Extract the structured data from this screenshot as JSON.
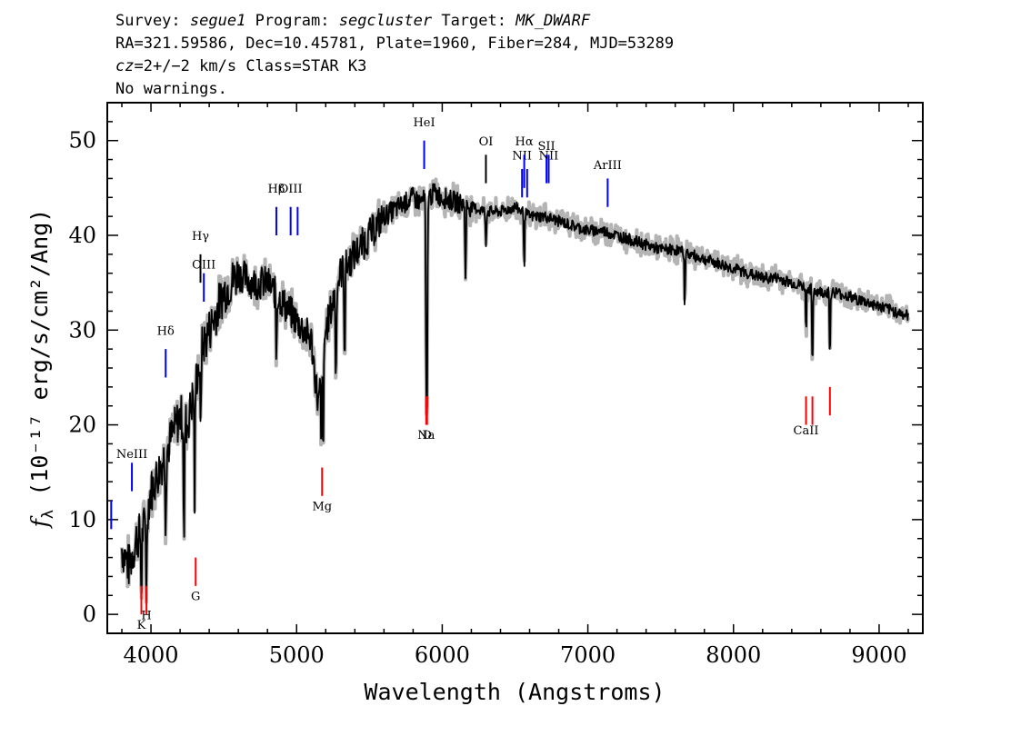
{
  "header": {
    "survey_label": "Survey:",
    "survey": "segue1",
    "program_label": "Program:",
    "program": "segcluster",
    "target_label": "Target:",
    "target": "MK_DWARF",
    "line2": "RA=321.59586, Dec=10.45781, Plate=1960, Fiber=284, MJD=53289",
    "redshift_var": "cz",
    "redshift_value": "=2+/−2",
    "redshift_unit_class": " km/s Class=STAR K3",
    "line4": "No warnings."
  },
  "chart_data": {
    "type": "line",
    "xlabel": "Wavelength (Angstroms)",
    "ylabel_symbol": "f",
    "ylabel_subscript": "λ",
    "ylabel_rest": "(10⁻¹⁷ erg/s/cm²/Ang)",
    "xlim": [
      3700,
      9300
    ],
    "ylim": [
      -2,
      54
    ],
    "x_ticks": [
      4000,
      5000,
      6000,
      7000,
      8000,
      9000
    ],
    "y_ticks": [
      0,
      10,
      20,
      30,
      40,
      50
    ],
    "x_tick_labels": [
      "4000",
      "5000",
      "6000",
      "7000",
      "8000",
      "9000"
    ],
    "y_tick_labels": [
      "0",
      "10",
      "20",
      "30",
      "40",
      "50"
    ],
    "grid": false,
    "spectrum_color": "#000000",
    "error_color": "#b4b4b4",
    "spectrum": {
      "x": [
        3800,
        3850,
        3900,
        3950,
        4000,
        4050,
        4100,
        4150,
        4200,
        4250,
        4300,
        4350,
        4400,
        4450,
        4500,
        4550,
        4600,
        4700,
        4800,
        4900,
        5000,
        5100,
        5150,
        5200,
        5250,
        5300,
        5400,
        5500,
        5600,
        5700,
        5800,
        5850,
        5900,
        5950,
        6000,
        6100,
        6200,
        6300,
        6400,
        6500,
        6600,
        6700,
        6800,
        6900,
        7000,
        7100,
        7200,
        7300,
        7400,
        7500,
        7600,
        7700,
        7800,
        7900,
        8000,
        8100,
        8200,
        8300,
        8400,
        8500,
        8600,
        8700,
        8800,
        8900,
        9000,
        9100,
        9200
      ],
      "y": [
        7,
        5,
        8,
        9,
        13,
        15,
        17,
        19,
        21,
        20,
        24,
        28,
        30,
        32,
        34,
        35,
        36,
        35,
        35,
        33,
        31,
        29,
        22,
        30,
        33,
        36,
        38,
        40,
        42,
        43,
        44,
        43.5,
        44,
        44.5,
        44,
        43.5,
        43,
        42.5,
        42.5,
        43,
        42,
        42,
        41.5,
        41,
        40.5,
        40.5,
        40,
        39.5,
        39,
        38.5,
        38.5,
        38,
        37.5,
        37,
        36.5,
        36,
        35.5,
        35.5,
        35,
        34.5,
        34,
        34,
        33.5,
        33,
        32.5,
        32,
        31.5
      ]
    },
    "absorption_features": [
      {
        "x": 3934,
        "y": 2
      },
      {
        "x": 3969,
        "y": 2.5
      },
      {
        "x": 4101,
        "y": 10
      },
      {
        "x": 4227,
        "y": 7
      },
      {
        "x": 4300,
        "y": 12
      },
      {
        "x": 4340,
        "y": 19
      },
      {
        "x": 4861,
        "y": 27
      },
      {
        "x": 5170,
        "y": 17
      },
      {
        "x": 5183,
        "y": 16
      },
      {
        "x": 5270,
        "y": 24
      },
      {
        "x": 5330,
        "y": 27
      },
      {
        "x": 5890,
        "y": 25
      },
      {
        "x": 5896,
        "y": 24.5
      },
      {
        "x": 6160,
        "y": 35
      },
      {
        "x": 6300,
        "y": 39
      },
      {
        "x": 6563,
        "y": 37
      },
      {
        "x": 7665,
        "y": 33
      },
      {
        "x": 8498,
        "y": 30
      },
      {
        "x": 8542,
        "y": 25
      },
      {
        "x": 8662,
        "y": 27
      }
    ],
    "emission_lines": [
      {
        "label": "",
        "x": 3727,
        "y_bottom": 9,
        "y_top": 12,
        "label_y": 12.5,
        "color": "#0000ff"
      },
      {
        "label": "NeIII",
        "x": 3869,
        "y_bottom": 13,
        "y_top": 16,
        "label_y": 16.5,
        "color": "#0000ff"
      },
      {
        "label": "Hδ",
        "x": 4101,
        "y_bottom": 25,
        "y_top": 28,
        "label_y": 29.5,
        "color": "#0000ff"
      },
      {
        "label": "Hγ",
        "x": 4340,
        "y_bottom": 35,
        "y_top": 38,
        "label_y": 39.5,
        "color": "#000000"
      },
      {
        "label": "OIII",
        "x": 4363,
        "y_bottom": 33,
        "y_top": 36,
        "label_y": 36.5,
        "color": "#0000ff"
      },
      {
        "label": "Hβ",
        "x": 4861,
        "y_bottom": 40,
        "y_top": 43,
        "label_y": 44.5,
        "color": "#0000ff"
      },
      {
        "label": "OIII",
        "x": 4959,
        "y_bottom": 40,
        "y_top": 43,
        "label_y": 44.5,
        "color": "#0000ff"
      },
      {
        "label": "",
        "x": 5007,
        "y_bottom": 40,
        "y_top": 43,
        "label_y": 44.5,
        "color": "#0000ff"
      },
      {
        "label": "HeI",
        "x": 5876,
        "y_bottom": 47,
        "y_top": 50,
        "label_y": 51.5,
        "color": "#0000ff"
      },
      {
        "label": "OI",
        "x": 6300,
        "y_bottom": 45.5,
        "y_top": 48.5,
        "label_y": 49.5,
        "color": "#000000"
      },
      {
        "label": "NII",
        "x": 6548,
        "y_bottom": 44,
        "y_top": 47,
        "label_y": 48,
        "color": "#0000ff"
      },
      {
        "label": "Hα",
        "x": 6563,
        "y_bottom": 45,
        "y_top": 48.5,
        "label_y": 49.5,
        "color": "#0000ff"
      },
      {
        "label": "",
        "x": 6583,
        "y_bottom": 44,
        "y_top": 47,
        "label_y": 48,
        "color": "#0000ff"
      },
      {
        "label": "SII",
        "x": 6716,
        "y_bottom": 45.5,
        "y_top": 48.5,
        "label_y": 49,
        "color": "#0000ff"
      },
      {
        "label": "NII",
        "x": 6731,
        "y_bottom": 45.5,
        "y_top": 48.5,
        "label_y": 48,
        "color": "#0000ff"
      },
      {
        "label": "ArIII",
        "x": 7136,
        "y_bottom": 43,
        "y_top": 46,
        "label_y": 47,
        "color": "#0000ff"
      }
    ],
    "absorption_lines": [
      {
        "label": "K",
        "x": 3934,
        "y_bottom": 0,
        "y_top": 3,
        "label_y": -1.5,
        "color": "#ff0000"
      },
      {
        "label": "H",
        "x": 3969,
        "y_bottom": 0,
        "y_top": 3,
        "label_y": -0.5,
        "color": "#ff0000"
      },
      {
        "label": "G",
        "x": 4307,
        "y_bottom": 3,
        "y_top": 6,
        "label_y": 1.5,
        "color": "#ff0000"
      },
      {
        "label": "Mg",
        "x": 5175,
        "y_bottom": 12.5,
        "y_top": 15.5,
        "label_y": 11,
        "color": "#ff0000"
      },
      {
        "label": "Na",
        "x": 5890,
        "y_bottom": 20,
        "y_top": 23,
        "label_y": 18.5,
        "color": "#ff0000"
      },
      {
        "label": "D",
        "x": 5896,
        "y_bottom": 20,
        "y_top": 23,
        "label_y": 18.5,
        "color": "#ff0000"
      },
      {
        "label": "CaII",
        "x": 8498,
        "y_bottom": 20,
        "y_top": 23,
        "label_y": 19,
        "color": "#ff0000"
      },
      {
        "label": "",
        "x": 8542,
        "y_bottom": 20,
        "y_top": 23,
        "label_y": 19,
        "color": "#ff0000"
      },
      {
        "label": "",
        "x": 8662,
        "y_bottom": 21,
        "y_top": 24,
        "label_y": 19,
        "color": "#ff0000"
      }
    ]
  }
}
